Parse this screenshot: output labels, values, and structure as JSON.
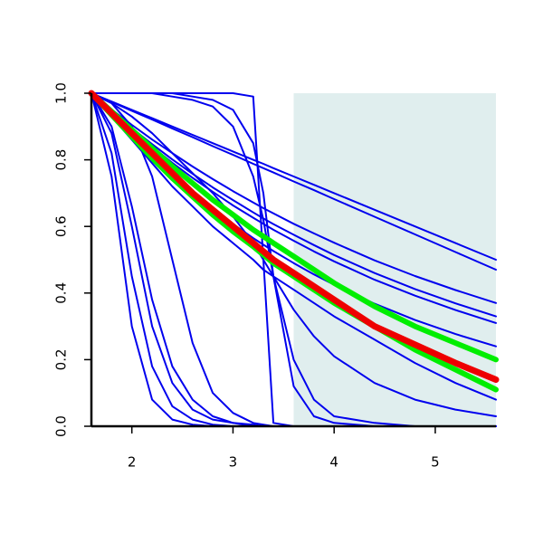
{
  "chart_data": {
    "type": "line",
    "x": [
      1.6,
      1.8,
      2.0,
      2.2,
      2.4,
      2.6,
      2.8,
      3.0,
      3.2,
      3.3,
      3.4,
      3.6,
      3.8,
      4.0,
      4.4,
      4.8,
      5.2,
      5.6
    ],
    "xlim": [
      1.6,
      5.6
    ],
    "xticks": [
      2,
      3,
      4,
      5
    ],
    "ylim": [
      0,
      1
    ],
    "yticks": [
      {
        "value": 0,
        "label": "0.0"
      },
      0.2,
      0.4,
      0.6,
      0.8,
      {
        "value": 1,
        "label": "1.0"
      }
    ],
    "shaded_region": {
      "xlim": [
        3.6,
        5.6
      ],
      "color": "#e0eeee"
    },
    "series": [
      {
        "color": "#0000ee",
        "linewidth": 2,
        "values": [
          1,
          0.75,
          0.3,
          0.08,
          0.02,
          0.005,
          0,
          0,
          0,
          0,
          0,
          0,
          0,
          0,
          0,
          0,
          0,
          0
        ]
      },
      {
        "color": "#0000ee",
        "linewidth": 2,
        "values": [
          1,
          0.82,
          0.45,
          0.18,
          0.06,
          0.02,
          0.005,
          0,
          0,
          0,
          0,
          0,
          0,
          0,
          0,
          0,
          0,
          0
        ]
      },
      {
        "color": "#0000ee",
        "linewidth": 2,
        "values": [
          1,
          0.88,
          0.6,
          0.3,
          0.13,
          0.05,
          0.02,
          0.01,
          0,
          0,
          0,
          0,
          0,
          0,
          0,
          0,
          0,
          0
        ]
      },
      {
        "color": "#0000ee",
        "linewidth": 2,
        "values": [
          1,
          0.9,
          0.66,
          0.38,
          0.18,
          0.08,
          0.03,
          0.01,
          0.005,
          0,
          0,
          0,
          0,
          0,
          0,
          0,
          0,
          0
        ]
      },
      {
        "color": "#0000ee",
        "linewidth": 2,
        "values": [
          1,
          0.97,
          0.9,
          0.75,
          0.5,
          0.25,
          0.1,
          0.04,
          0.01,
          0.005,
          0,
          0,
          0,
          0,
          0,
          0,
          0,
          0
        ]
      },
      {
        "color": "#0000ee",
        "linewidth": 2,
        "values": [
          1,
          1,
          1,
          1,
          1,
          1,
          1,
          1,
          0.99,
          0.5,
          0.01,
          0,
          0,
          0,
          0,
          0,
          0,
          0
        ]
      },
      {
        "color": "#0000ee",
        "linewidth": 2,
        "values": [
          1,
          1,
          1,
          1,
          1,
          0.99,
          0.98,
          0.95,
          0.85,
          0.7,
          0.45,
          0.12,
          0.03,
          0.01,
          0,
          0,
          0,
          0
        ]
      },
      {
        "color": "#0000ee",
        "linewidth": 2,
        "values": [
          1,
          1,
          1,
          1,
          0.99,
          0.98,
          0.96,
          0.9,
          0.75,
          0.62,
          0.45,
          0.2,
          0.08,
          0.03,
          0.01,
          0,
          0,
          0
        ]
      },
      {
        "color": "#0000ee",
        "linewidth": 2,
        "values": [
          1,
          0.97,
          0.93,
          0.88,
          0.82,
          0.76,
          0.7,
          0.63,
          0.55,
          0.5,
          0.45,
          0.35,
          0.27,
          0.21,
          0.13,
          0.08,
          0.05,
          0.03
        ]
      },
      {
        "color": "#0000ee",
        "linewidth": 2,
        "values": [
          1,
          0.975,
          0.95,
          0.925,
          0.9,
          0.875,
          0.85,
          0.825,
          0.8,
          0.788,
          0.775,
          0.75,
          0.725,
          0.7,
          0.65,
          0.6,
          0.55,
          0.5
        ]
      },
      {
        "color": "#0000ee",
        "linewidth": 2,
        "values": [
          1,
          0.974,
          0.947,
          0.921,
          0.894,
          0.868,
          0.841,
          0.815,
          0.788,
          0.775,
          0.762,
          0.735,
          0.709,
          0.682,
          0.629,
          0.576,
          0.523,
          0.47
        ]
      },
      {
        "color": "#0000ee",
        "linewidth": 2,
        "values": [
          1,
          0.951,
          0.905,
          0.861,
          0.82,
          0.78,
          0.742,
          0.706,
          0.672,
          0.655,
          0.639,
          0.608,
          0.579,
          0.551,
          0.498,
          0.451,
          0.409,
          0.37
        ]
      },
      {
        "color": "#0000ee",
        "linewidth": 2,
        "values": [
          1,
          0.946,
          0.895,
          0.847,
          0.801,
          0.758,
          0.717,
          0.679,
          0.642,
          0.624,
          0.607,
          0.575,
          0.544,
          0.514,
          0.46,
          0.412,
          0.369,
          0.33
        ]
      },
      {
        "color": "#0000ee",
        "linewidth": 2,
        "values": [
          1,
          0.943,
          0.889,
          0.839,
          0.791,
          0.746,
          0.704,
          0.663,
          0.626,
          0.608,
          0.59,
          0.557,
          0.525,
          0.495,
          0.44,
          0.392,
          0.349,
          0.31
        ]
      },
      {
        "color": "#0000ee",
        "linewidth": 2,
        "values": [
          1,
          0.931,
          0.867,
          0.807,
          0.751,
          0.7,
          0.651,
          0.607,
          0.565,
          0.545,
          0.526,
          0.49,
          0.456,
          0.425,
          0.368,
          0.319,
          0.277,
          0.24
        ]
      },
      {
        "color": "#0000ee",
        "linewidth": 2,
        "values": [
          1,
          0.93,
          0.86,
          0.79,
          0.72,
          0.66,
          0.6,
          0.55,
          0.5,
          0.47,
          0.45,
          0.41,
          0.37,
          0.33,
          0.26,
          0.19,
          0.13,
          0.08
        ]
      },
      {
        "color": "#00ee00",
        "linewidth": 6,
        "values": [
          1,
          0.945,
          0.89,
          0.835,
          0.78,
          0.73,
          0.68,
          0.635,
          0.59,
          0.57,
          0.55,
          0.51,
          0.47,
          0.43,
          0.36,
          0.3,
          0.25,
          0.2
        ]
      },
      {
        "color": "#00ee00",
        "linewidth": 6,
        "values": [
          1,
          0.935,
          0.87,
          0.805,
          0.745,
          0.69,
          0.635,
          0.585,
          0.54,
          0.515,
          0.49,
          0.45,
          0.41,
          0.37,
          0.3,
          0.23,
          0.17,
          0.11
        ]
      },
      {
        "color": "#ee0000",
        "linewidth": 7,
        "values": [
          1,
          0.94,
          0.88,
          0.82,
          0.76,
          0.7,
          0.65,
          0.6,
          0.55,
          0.525,
          0.5,
          0.46,
          0.42,
          0.38,
          0.3,
          0.245,
          0.19,
          0.14
        ]
      }
    ]
  }
}
